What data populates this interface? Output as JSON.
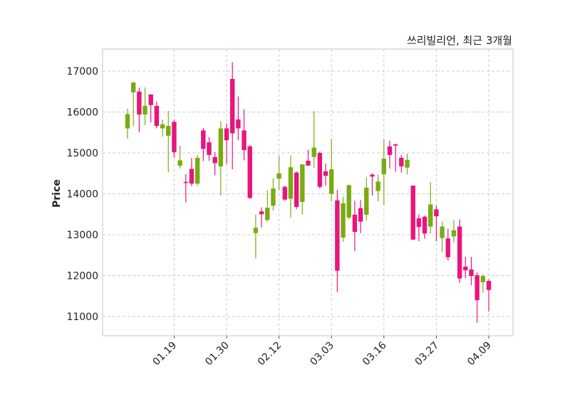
{
  "chart_data": {
    "type": "candlestick",
    "title": "쓰리빌리언, 최근 3개월",
    "ylabel": "Price",
    "xlabel": "",
    "ylim": [
      10550,
      17550
    ],
    "yticks": [
      11000,
      12000,
      13000,
      14000,
      15000,
      16000,
      17000
    ],
    "xticks": [
      {
        "label": "01.19",
        "index": 8
      },
      {
        "label": "01.30",
        "index": 17
      },
      {
        "label": "02.12",
        "index": 26
      },
      {
        "label": "03.03",
        "index": 35
      },
      {
        "label": "03.16",
        "index": 44
      },
      {
        "label": "03.27",
        "index": 53
      },
      {
        "label": "04.09",
        "index": 62
      }
    ],
    "grid": true,
    "colors": {
      "up": "#7aab12",
      "down": "#e8157c",
      "grid": "#cccccc",
      "frame": "#d8d8d8"
    },
    "ohlc_fields": [
      "open",
      "high",
      "low",
      "close"
    ],
    "candles": [
      [
        15600,
        16080,
        15350,
        15950
      ],
      [
        16480,
        16740,
        15650,
        16720
      ],
      [
        16500,
        16600,
        15500,
        15940
      ],
      [
        15940,
        16600,
        15680,
        16150
      ],
      [
        16430,
        16430,
        15750,
        16170
      ],
      [
        16150,
        16250,
        15600,
        15660
      ],
      [
        15600,
        15820,
        15400,
        15700
      ],
      [
        15420,
        16030,
        14530,
        15660
      ],
      [
        15760,
        15810,
        14880,
        15020
      ],
      [
        14690,
        15180,
        14620,
        14820
      ],
      [
        14290,
        14480,
        13790,
        14270
      ],
      [
        14610,
        14880,
        14190,
        14250
      ],
      [
        14250,
        14950,
        14190,
        14880
      ],
      [
        15550,
        15610,
        14800,
        15100
      ],
      [
        15260,
        15390,
        14810,
        14950
      ],
      [
        14900,
        15020,
        14450,
        14750
      ],
      [
        14670,
        15780,
        13960,
        15600
      ],
      [
        15600,
        15720,
        14730,
        15310
      ],
      [
        16810,
        17220,
        14600,
        15480
      ],
      [
        15820,
        16380,
        15310,
        15600
      ],
      [
        15550,
        16070,
        14820,
        15070
      ],
      [
        15160,
        15190,
        13870,
        13900
      ],
      [
        13040,
        13490,
        12420,
        13170
      ],
      [
        13570,
        13670,
        13180,
        13500
      ],
      [
        13360,
        14090,
        13310,
        13660
      ],
      [
        13710,
        14380,
        13600,
        14130
      ],
      [
        14370,
        14920,
        14090,
        14500
      ],
      [
        14170,
        14200,
        13830,
        13860
      ],
      [
        13880,
        14940,
        13420,
        14650
      ],
      [
        14520,
        14550,
        13630,
        13680
      ],
      [
        13800,
        14720,
        13500,
        14720
      ],
      [
        14810,
        15080,
        14690,
        14690
      ],
      [
        14900,
        16020,
        14640,
        15130
      ],
      [
        15000,
        15030,
        14130,
        14170
      ],
      [
        14550,
        14740,
        14200,
        14440
      ],
      [
        14000,
        15340,
        13810,
        14600
      ],
      [
        13840,
        14100,
        11600,
        12120
      ],
      [
        12930,
        13930,
        12830,
        13770
      ],
      [
        13420,
        14230,
        13370,
        14210
      ],
      [
        13490,
        13830,
        12600,
        13070
      ],
      [
        13650,
        13850,
        13040,
        13320
      ],
      [
        13490,
        14400,
        13350,
        14150
      ],
      [
        14470,
        14500,
        13960,
        14420
      ],
      [
        14070,
        14470,
        13820,
        14300
      ],
      [
        14480,
        15340,
        13730,
        14860
      ],
      [
        15160,
        15300,
        14620,
        14950
      ],
      [
        15210,
        15230,
        14540,
        15180
      ],
      [
        14880,
        14950,
        14520,
        14670
      ],
      [
        14640,
        14980,
        14470,
        14830
      ],
      [
        14200,
        14200,
        12880,
        12880
      ],
      [
        13400,
        13500,
        12840,
        13190
      ],
      [
        13440,
        13470,
        12900,
        13030
      ],
      [
        13200,
        14290,
        13030,
        13740
      ],
      [
        13620,
        13710,
        12840,
        13450
      ],
      [
        12920,
        13320,
        12580,
        13200
      ],
      [
        12910,
        13150,
        12370,
        12450
      ],
      [
        12960,
        13350,
        12810,
        13110
      ],
      [
        13200,
        13370,
        11820,
        11930
      ],
      [
        12220,
        12460,
        11940,
        12130
      ],
      [
        12150,
        12460,
        11770,
        11990
      ],
      [
        12010,
        12080,
        10850,
        11400
      ],
      [
        11840,
        12030,
        11580,
        11990
      ],
      [
        11870,
        11910,
        11120,
        11650
      ]
    ]
  }
}
